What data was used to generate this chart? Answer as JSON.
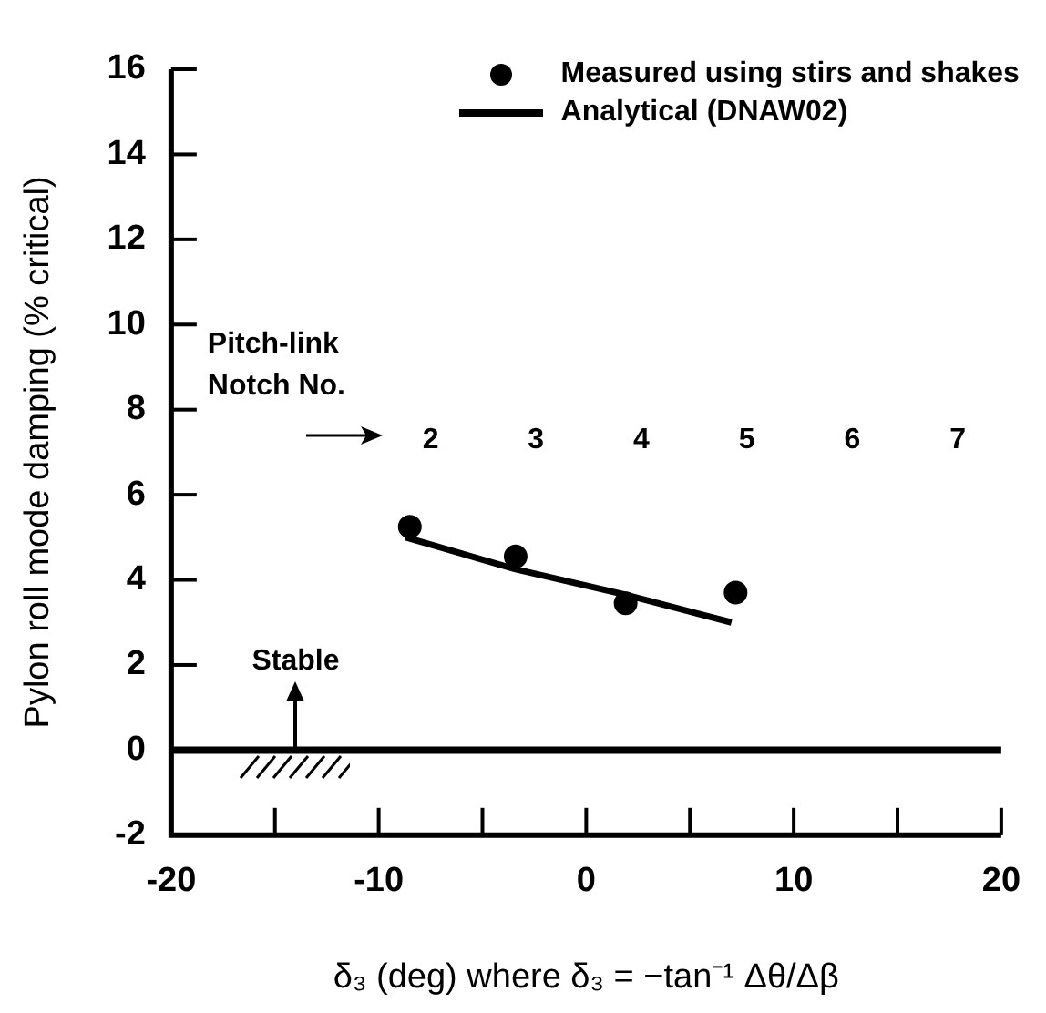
{
  "chart_data": {
    "type": "scatter",
    "xlabel": "δ₃ (deg) where δ₃ = −tan⁻¹ Δθ/Δβ",
    "ylabel": "Pylon roll mode damping (% critical)",
    "xlim": [
      -20,
      20
    ],
    "ylim": [
      -2,
      16
    ],
    "xticks": [
      -20,
      {
        "value": -15,
        "label": null
      },
      -10,
      {
        "value": -5,
        "label": null
      },
      0,
      {
        "value": 5,
        "label": null
      },
      10,
      {
        "value": 15,
        "label": null
      },
      20
    ],
    "yticks": [
      -2,
      0,
      2,
      4,
      6,
      8,
      10,
      12,
      14,
      16
    ],
    "grid": false,
    "legend": "top right",
    "series": [
      {
        "name": "Measured using stirs and shakes",
        "type": "scatter",
        "marker": "circle",
        "color": "#000000",
        "x": [
          -8.5,
          -3.4,
          1.9,
          7.2
        ],
        "values": [
          5.25,
          4.55,
          3.45,
          3.7
        ]
      },
      {
        "name": "Analytical (DNAW02)",
        "type": "line",
        "marker": "none",
        "line_style": "solid",
        "color": "#000000",
        "x": [
          -8.7,
          -3.4,
          1.9,
          7.0
        ],
        "values": [
          5.0,
          4.25,
          3.65,
          3.0
        ]
      }
    ],
    "ref_lines": [
      {
        "axis": "y",
        "value": 0,
        "color": "#000000"
      }
    ],
    "annotations": [
      "Pitch-link Notch No.",
      {
        "text": "Stable",
        "x": -14,
        "y": 0
      },
      "2",
      "3",
      "4",
      "5",
      "6",
      "7"
    ]
  }
}
